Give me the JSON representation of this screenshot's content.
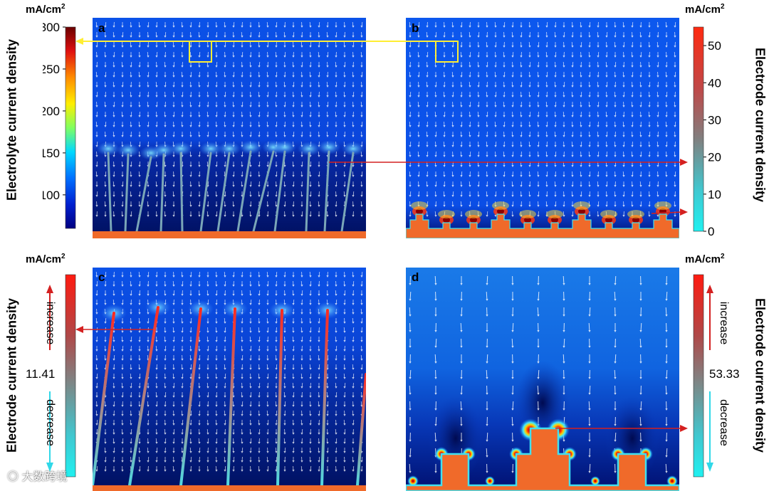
{
  "panels": {
    "a": {
      "letter": "a"
    },
    "b": {
      "letter": "b"
    },
    "c": {
      "letter": "c"
    },
    "d": {
      "letter": "d"
    }
  },
  "colorbars": {
    "electrolyte": {
      "unit": "mA/cm",
      "unit_sup": "2",
      "label": "Electrolyte current density",
      "ticks": [
        "300",
        "250",
        "200",
        "150",
        "100"
      ],
      "range": [
        60,
        300
      ],
      "colors": [
        "#8b0000",
        "#ff2a00",
        "#ff9900",
        "#ffee00",
        "#88ff55",
        "#00e0ff",
        "#0080ff",
        "#0022dd",
        "#000088"
      ]
    },
    "electrode_b": {
      "unit": "mA/cm",
      "unit_sup": "2",
      "label": "Electrode current density",
      "ticks": [
        "50",
        "40",
        "30",
        "20",
        "10",
        "0"
      ],
      "range": [
        0,
        55
      ],
      "colors": [
        "#ff2a10",
        "#c05050",
        "#808080",
        "#40c8d0",
        "#20f0f0"
      ]
    },
    "electrode_c": {
      "unit": "mA/cm",
      "unit_sup": "2",
      "label": "Electrode current density",
      "mid_value": "11.41",
      "increase": "increase",
      "decrease": "decrease"
    },
    "electrode_d": {
      "unit": "mA/cm",
      "unit_sup": "2",
      "label": "Electrode current density",
      "mid_value": "53.33",
      "increase": "increase",
      "decrease": "decrease"
    }
  },
  "colors": {
    "field_blue": "#0a50e6",
    "deep_blue": "#001a9a",
    "electrode_orange": "#f06a2a",
    "cyan_outline": "#40e0f0",
    "yellow": "#ffee33",
    "red_arrow": "#d42020"
  },
  "watermark": "大数跨境"
}
